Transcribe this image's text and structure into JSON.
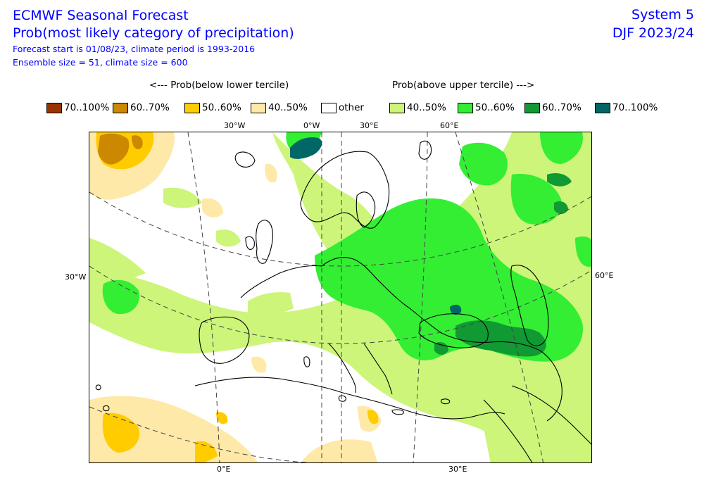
{
  "title": {
    "line1": "ECMWF Seasonal Forecast",
    "line2": "Prob(most likely category of precipitation)",
    "forecast_info": "Forecast start is 01/08/23, climate period is 1993-2016",
    "ensemble_info": "Ensemble size = 51, climate size = 600"
  },
  "system": {
    "name": "System 5",
    "season": "DJF 2023/24"
  },
  "legend": {
    "below_header": "<--- Prob(below lower tercile)",
    "above_header": "Prob(above upper tercile) --->",
    "items": [
      {
        "label": "70..100%",
        "color": "#993300"
      },
      {
        "label": "60..70%",
        "color": "#cc8800"
      },
      {
        "label": "50..60%",
        "color": "#ffcc00"
      },
      {
        "label": "40..50%",
        "color": "#ffe9a8"
      },
      {
        "label": "other",
        "color": "#ffffff"
      },
      {
        "label": "40..50%",
        "color": "#ccf57a"
      },
      {
        "label": "50..60%",
        "color": "#33ee33"
      },
      {
        "label": "60..70%",
        "color": "#119933"
      },
      {
        "label": "70..100%",
        "color": "#006666"
      }
    ]
  },
  "map": {
    "top_labels": [
      "30°W",
      "0°W",
      "30°E",
      "60°E"
    ],
    "left_label": "30°W",
    "right_label": "60°E",
    "bottom_labels": [
      "0°E",
      "30°E"
    ]
  }
}
